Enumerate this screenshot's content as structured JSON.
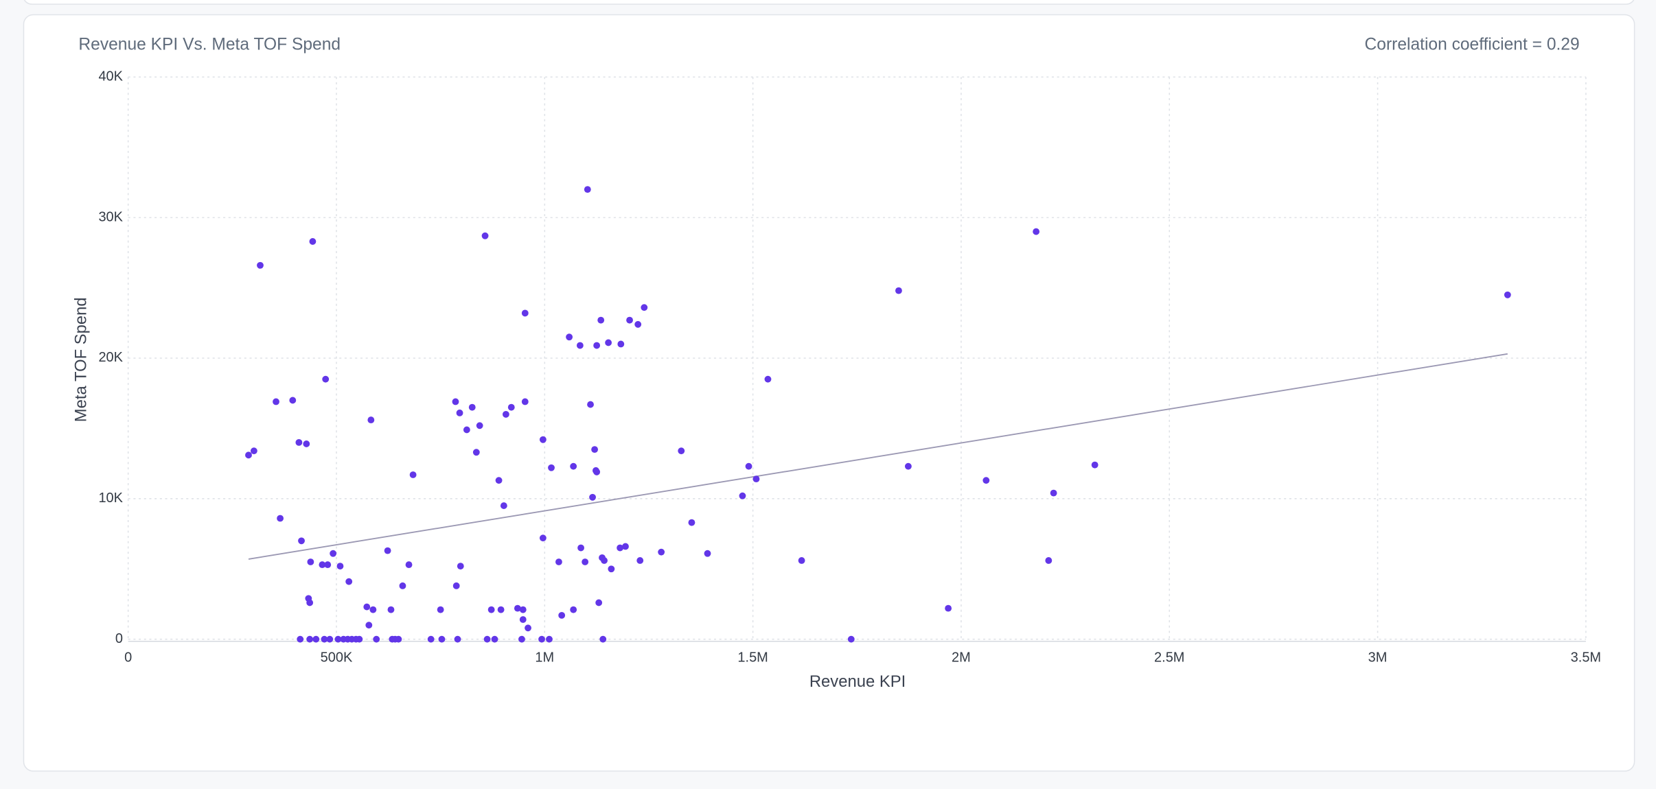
{
  "chart_data": {
    "type": "scatter",
    "title": "Revenue KPI Vs. Meta TOF Spend",
    "subtitle": "Correlation coefficient = 0.29",
    "x_label": "Revenue KPI",
    "y_label": "Meta TOF Spend",
    "color": "#6236e8",
    "trendline_color": "#9b98b3",
    "grid": true,
    "x": [
      289000,
      302000,
      317000,
      355000,
      365000,
      395000,
      410000,
      416000,
      413000,
      428000,
      433000,
      436000,
      438000,
      436000,
      443000,
      451000,
      466000,
      471000,
      474000,
      479000,
      484000,
      492000,
      504000,
      509000,
      517000,
      530000,
      527000,
      537000,
      547000,
      555000,
      573000,
      578000,
      583000,
      588000,
      596000,
      623000,
      631000,
      634000,
      641000,
      649000,
      659000,
      674000,
      684000,
      727000,
      750000,
      753000,
      786000,
      788000,
      791000,
      796000,
      798000,
      813000,
      826000,
      836000,
      844000,
      857000,
      862000,
      872000,
      880000,
      890000,
      895000,
      902000,
      907000,
      920000,
      935000,
      945000,
      948000,
      948000,
      953000,
      953000,
      960000,
      993000,
      996000,
      996000,
      1011000,
      1016000,
      1034000,
      1041000,
      1059000,
      1069000,
      1069000,
      1085000,
      1087000,
      1097000,
      1103000,
      1110000,
      1115000,
      1120000,
      1125000,
      1123000,
      1125000,
      1130000,
      1135000,
      1138000,
      1140000,
      1143000,
      1153000,
      1160000,
      1181000,
      1183000,
      1194000,
      1204000,
      1224000,
      1229000,
      1239000,
      1280000,
      1328000,
      1353000,
      1391000,
      1475000,
      1490000,
      1508000,
      1536000,
      1617000,
      1736000,
      1850000,
      1873000,
      1969000,
      2060000,
      2180000,
      2210000,
      2222000,
      2321000,
      3312000
    ],
    "values": [
      13100,
      13400,
      26600,
      16900,
      8600,
      17000,
      14000,
      7000,
      0,
      13900,
      2900,
      2600,
      5500,
      0,
      28300,
      0,
      5300,
      0,
      18500,
      5300,
      0,
      6100,
      0,
      5200,
      0,
      4100,
      0,
      0,
      0,
      0,
      2300,
      1000,
      15600,
      2100,
      0,
      6300,
      2100,
      0,
      0,
      0,
      3800,
      5300,
      11700,
      0,
      2100,
      0,
      16900,
      3800,
      0,
      16100,
      5200,
      14900,
      16500,
      13300,
      15200,
      28700,
      0,
      2100,
      0,
      11300,
      2100,
      9500,
      16000,
      16500,
      2200,
      0,
      2100,
      1400,
      16900,
      23200,
      800,
      0,
      7200,
      14200,
      0,
      12200,
      5500,
      1700,
      21500,
      2100,
      12300,
      20900,
      6500,
      5500,
      32000,
      16700,
      10100,
      13500,
      20900,
      12000,
      11900,
      2600,
      22700,
      5800,
      0,
      5600,
      21100,
      5000,
      6500,
      21000,
      6600,
      22700,
      22400,
      5600,
      23600,
      6200,
      13400,
      8300,
      6100,
      10200,
      12300,
      11400,
      18500,
      5600,
      0,
      24800,
      12300,
      2200,
      11300,
      29000,
      5600,
      10400,
      12400,
      24500
    ],
    "trendline": {
      "x": [
        289000,
        3312000
      ],
      "y": [
        5700,
        20300
      ]
    },
    "xlim": [
      0,
      3500000
    ],
    "xticks": [
      0,
      {
        "value": 500000,
        "label": "500K"
      },
      {
        "value": 1000000,
        "label": "1M"
      },
      {
        "value": 1500000,
        "label": "1.5M"
      },
      {
        "value": 2000000,
        "label": "2M"
      },
      {
        "value": 2500000,
        "label": "2.5M"
      },
      {
        "value": 3000000,
        "label": "3M"
      },
      {
        "value": 3500000,
        "label": "3.5M"
      }
    ],
    "ylim": [
      0,
      40000
    ],
    "yticks": [
      0,
      {
        "value": 10000,
        "label": "10K"
      },
      {
        "value": 20000,
        "label": "20K"
      },
      {
        "value": 30000,
        "label": "30K"
      },
      {
        "value": 40000,
        "label": "40K"
      }
    ]
  }
}
